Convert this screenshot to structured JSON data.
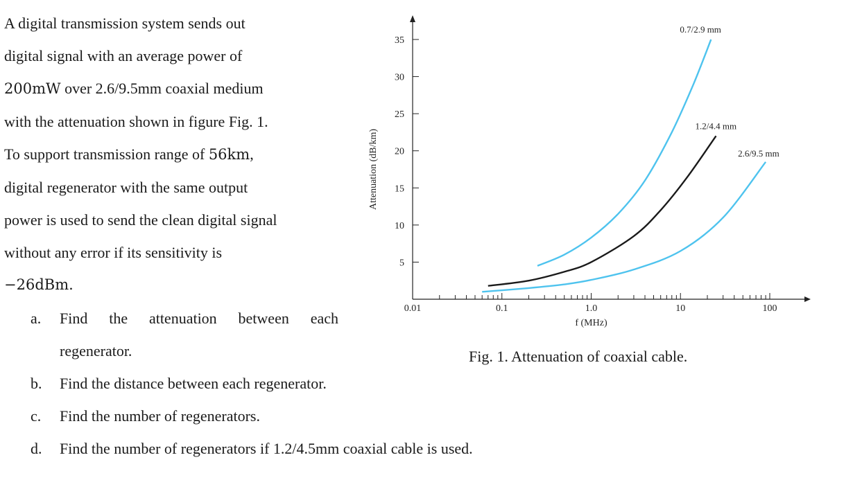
{
  "problem": {
    "lines": [
      "A digital transmission system sends out",
      "digital signal with an average power of",
      "with the attenuation shown in figure Fig. 1.",
      "digital regenerator with the same output",
      "power is used to send the clean digital signal",
      "without any error if its sensitivity is"
    ],
    "line3_num": "200mW",
    "line3_rest": " over 2.6/9.5mm coaxial medium",
    "line5_pre": "To support transmission range of ",
    "line5_num": "56km",
    "line5_post": ",",
    "line9": "−26dBm."
  },
  "questions": [
    {
      "label": "a.",
      "text": "Find the attenuation between each",
      "cont": "regenerator."
    },
    {
      "label": "b.",
      "text": "Find the distance between each regenerator."
    },
    {
      "label": "c.",
      "text": "Find the number of regenerators."
    },
    {
      "label": "d.",
      "text": "Find the number of regenerators if 1.2/4.5mm coaxial cable is used."
    }
  ],
  "figure": {
    "caption": "Fig. 1. Attenuation of coaxial cable."
  },
  "chart_data": {
    "type": "line",
    "xlabel": "f (MHz)",
    "ylabel": "Attenuation (dB/km)",
    "xscale": "log",
    "xlim": [
      0.01,
      100
    ],
    "ylim": [
      0,
      35
    ],
    "xticks": [
      "0.01",
      "0.1",
      "1.0",
      "10",
      "100"
    ],
    "yticks": [
      "5",
      "10",
      "15",
      "20",
      "25",
      "30",
      "35"
    ],
    "grid": false,
    "legend": "none",
    "series": [
      {
        "name": "0.7/2.9 mm",
        "color": "#4ec3ee",
        "x": [
          0.25,
          0.5,
          1.0,
          2.0,
          4.0,
          8.0,
          14.0,
          22.0
        ],
        "y": [
          4.5,
          6.0,
          8.3,
          11.5,
          16.0,
          22.5,
          29.0,
          35.0
        ]
      },
      {
        "name": "1.2/4.4 mm",
        "color": "#1a1a1a",
        "x": [
          0.07,
          0.2,
          0.5,
          1.0,
          3.0,
          6.0,
          12.0,
          25.0
        ],
        "y": [
          1.8,
          2.5,
          3.7,
          5.0,
          8.5,
          12.0,
          16.5,
          22.0
        ]
      },
      {
        "name": "2.6/9.5 mm",
        "color": "#4ec3ee",
        "x": [
          0.06,
          0.2,
          0.5,
          1.0,
          3.0,
          10.0,
          30.0,
          90.0
        ],
        "y": [
          1.0,
          1.5,
          2.0,
          2.6,
          4.0,
          6.5,
          11.0,
          18.5
        ]
      }
    ]
  }
}
